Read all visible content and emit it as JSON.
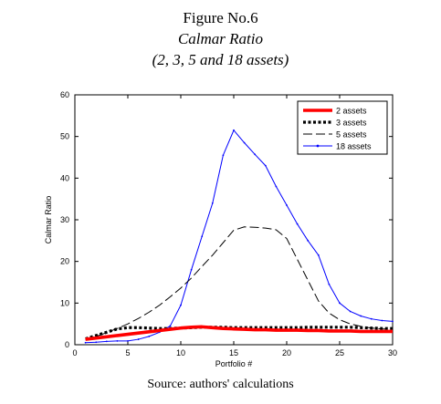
{
  "caption": {
    "label": "Figure No.6",
    "title": "Calmar Ratio",
    "subtitle": "(2, 3, 5 and 18 assets)",
    "source": "Source: authors' calculations"
  },
  "chart_data": {
    "type": "line",
    "title": "",
    "xlabel": "Portfolio #",
    "ylabel": "Calmar Ratio",
    "xlim": [
      0,
      30
    ],
    "ylim": [
      0,
      60
    ],
    "xticks": [
      0,
      5,
      10,
      15,
      20,
      25,
      30
    ],
    "yticks": [
      0,
      10,
      20,
      30,
      40,
      50,
      60
    ],
    "grid": false,
    "legend_position": "top-right",
    "x": [
      1,
      2,
      3,
      4,
      5,
      6,
      7,
      8,
      9,
      10,
      11,
      12,
      13,
      14,
      15,
      16,
      17,
      18,
      19,
      20,
      21,
      22,
      23,
      24,
      25,
      26,
      27,
      28,
      29,
      30
    ],
    "series": [
      {
        "name": "2 assets",
        "color": "#ff0000",
        "style": "solid-thick",
        "values": [
          1.3,
          1.6,
          1.9,
          2.2,
          2.5,
          2.8,
          3.1,
          3.4,
          3.7,
          4.0,
          4.2,
          4.3,
          4.1,
          3.9,
          3.8,
          3.7,
          3.6,
          3.6,
          3.5,
          3.5,
          3.5,
          3.4,
          3.4,
          3.3,
          3.3,
          3.3,
          3.2,
          3.2,
          3.2,
          3.2
        ]
      },
      {
        "name": "3 assets",
        "color": "#000000",
        "style": "dotted-thick",
        "values": [
          1.4,
          2.2,
          3.0,
          3.8,
          4.1,
          4.1,
          4.0,
          3.9,
          3.9,
          4.0,
          4.1,
          4.2,
          4.2,
          4.2,
          4.1,
          4.1,
          4.1,
          4.1,
          4.1,
          4.1,
          4.1,
          4.2,
          4.2,
          4.2,
          4.2,
          4.2,
          4.1,
          4.0,
          3.9,
          3.9
        ]
      },
      {
        "name": "5 assets",
        "color": "#000000",
        "style": "dashed",
        "values": [
          1.2,
          2.0,
          2.9,
          3.9,
          5.0,
          6.3,
          7.8,
          9.5,
          11.5,
          13.6,
          16.0,
          18.8,
          21.5,
          24.5,
          27.5,
          28.3,
          28.2,
          28.0,
          27.6,
          25.5,
          20.5,
          15.5,
          10.5,
          7.6,
          6.0,
          5.0,
          4.4,
          4.0,
          3.8,
          3.7
        ]
      },
      {
        "name": "18 assets",
        "color": "#0000ff",
        "style": "solid-thin-markers",
        "values": [
          0.5,
          0.6,
          0.8,
          0.9,
          0.9,
          1.3,
          2.0,
          3.0,
          4.5,
          9.5,
          18.0,
          26.0,
          34.0,
          45.5,
          51.5,
          48.5,
          45.7,
          43.0,
          38.0,
          33.5,
          29.0,
          25.0,
          21.5,
          14.5,
          10.0,
          8.0,
          6.9,
          6.2,
          5.8,
          5.6
        ]
      }
    ]
  }
}
